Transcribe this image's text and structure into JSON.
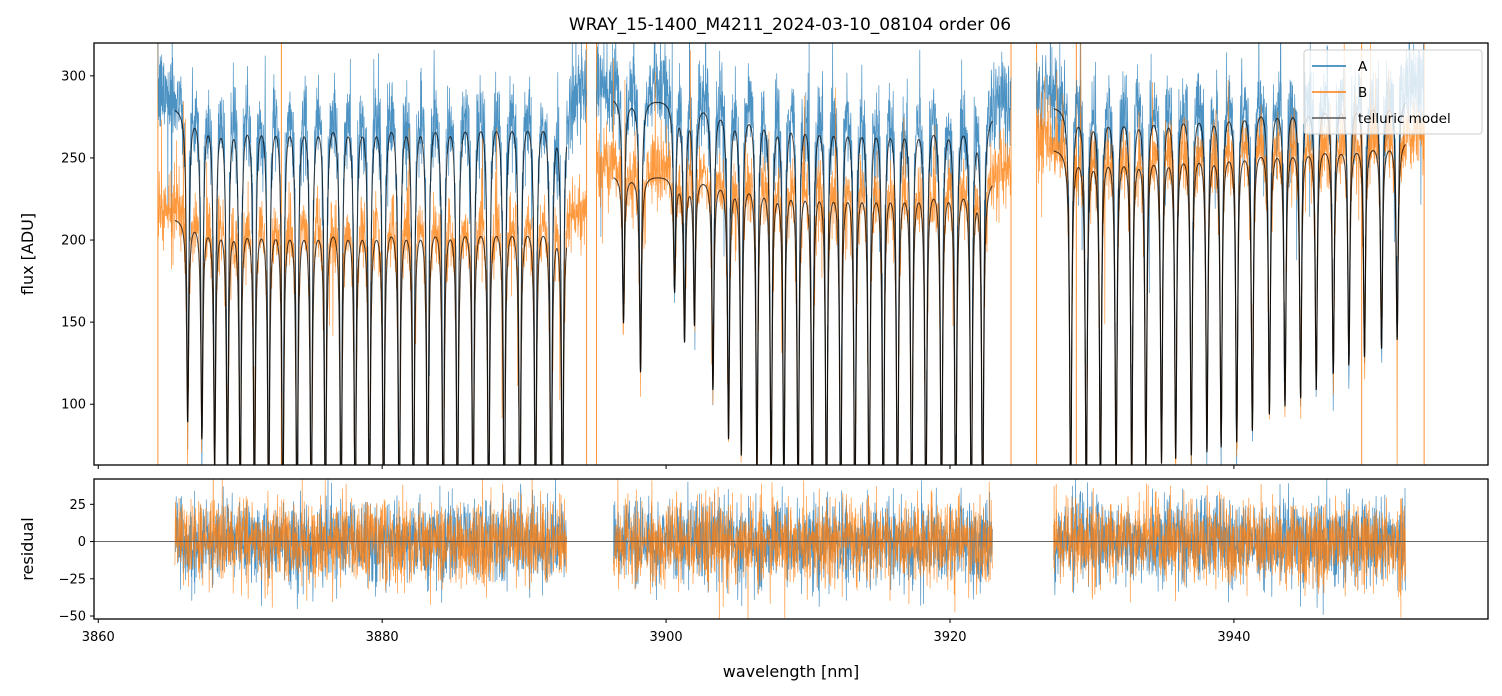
{
  "chart_data": [
    {
      "panel": "main",
      "type": "line",
      "title": "WRAY_15-1400_M4211_2024-03-10_08104  order 06",
      "xlabel": "",
      "ylabel": "flux [ADU]",
      "xlim": [
        3859.7,
        3957.9
      ],
      "ylim": [
        63,
        320
      ],
      "xticks": [
        3860,
        3880,
        3900,
        3920,
        3940
      ],
      "xtick_labels_visible": false,
      "yticks": [
        100,
        150,
        200,
        250,
        300
      ],
      "ytick_labels": [
        "100",
        "150",
        "200",
        "250",
        "300"
      ],
      "grid": false,
      "legend": {
        "location": "top-right",
        "entries": [
          {
            "label": "A",
            "color": "#1f77b4"
          },
          {
            "label": "B",
            "color": "#ff7f0e"
          },
          {
            "label": "telluric model",
            "color": "#333333"
          }
        ]
      },
      "segments": [
        {
          "x_range": [
            3864.2,
            3894.4
          ],
          "model_range": [
            3865.4,
            3893.0
          ],
          "continuum_A": 282,
          "continuum_B": 214,
          "line_centers": [
            3866.3,
            3867.3,
            3868.2,
            3869.1,
            3870.0,
            3871.0,
            3872.0,
            3873.0,
            3874.0,
            3875.0,
            3876.0,
            3877.1,
            3878.1,
            3879.1,
            3880.1,
            3881.2,
            3882.2,
            3883.2,
            3884.3,
            3885.3,
            3886.4,
            3887.5,
            3888.6,
            3889.7,
            3890.8,
            3891.9,
            3892.7
          ],
          "line_min_flux": [
            130,
            120,
            103,
            92,
            82,
            76,
            70,
            66,
            63,
            63,
            63,
            63,
            63,
            63,
            63,
            63,
            63,
            63,
            63,
            63,
            63,
            63,
            63,
            63,
            63,
            63,
            63
          ]
        },
        {
          "x_range": [
            3895.1,
            3924.3
          ],
          "model_range": [
            3896.3,
            3923.0
          ],
          "continuum_A": 288,
          "continuum_B": 240,
          "continuum_A_end": 278,
          "continuum_B_end": 238,
          "line_centers": [
            3897.0,
            3898.2,
            3900.6,
            3901.3,
            3902.0,
            3903.3,
            3904.4,
            3905.3,
            3906.4,
            3907.4,
            3908.3,
            3909.3,
            3910.3,
            3911.3,
            3912.3,
            3913.3,
            3914.3,
            3915.3,
            3916.3,
            3917.3,
            3918.3,
            3919.4,
            3920.4,
            3921.5,
            3922.3
          ],
          "line_min_flux": [
            190,
            160,
            210,
            180,
            190,
            150,
            120,
            110,
            100,
            92,
            84,
            76,
            70,
            66,
            63,
            63,
            63,
            63,
            63,
            63,
            63,
            63,
            63,
            63,
            63
          ]
        },
        {
          "x_range": [
            3926.1,
            3953.4
          ],
          "model_range": [
            3927.3,
            3952.1
          ],
          "continuum_A": 282,
          "continuum_B": 256,
          "continuum_A_end": 288,
          "continuum_B_end": 262,
          "line_centers": [
            3928.5,
            3929.6,
            3930.6,
            3931.7,
            3932.8,
            3933.8,
            3934.9,
            3935.9,
            3937.0,
            3938.1,
            3939.1,
            3940.2,
            3941.3,
            3942.5,
            3943.6,
            3944.7,
            3945.8,
            3947.0,
            3948.1,
            3949.2,
            3950.4,
            3951.5
          ],
          "line_min_flux": [
            78,
            80,
            85,
            90,
            95,
            100,
            105,
            108,
            110,
            112,
            115,
            118,
            125,
            135,
            140,
            145,
            150,
            160,
            165,
            170,
            175,
            180
          ]
        }
      ],
      "series": [
        {
          "name": "A",
          "color": "#1f77b4"
        },
        {
          "name": "B",
          "color": "#ff7f0e"
        },
        {
          "name": "telluric model",
          "color": "#000000"
        }
      ],
      "spikes": [
        3864.2,
        3872.9,
        3894.4,
        3895.1,
        3924.3,
        3926.1,
        3928.9,
        3949.0,
        3953.4
      ]
    },
    {
      "panel": "residual",
      "type": "line",
      "xlabel": "wavelength [nm]",
      "ylabel": "residual",
      "xlim": [
        3859.7,
        3957.9
      ],
      "ylim": [
        -52,
        42
      ],
      "xticks": [
        3860,
        3880,
        3900,
        3920,
        3940
      ],
      "xtick_labels": [
        "3860",
        "3880",
        "3900",
        "3920",
        "3940"
      ],
      "yticks": [
        25,
        0,
        -25,
        -50
      ],
      "ytick_labels": [
        "25",
        "0",
        "−25",
        "−50"
      ],
      "zero_line": 0,
      "noise_sigma": 14,
      "segments": [
        [
          3865.4,
          3893.0
        ],
        [
          3896.3,
          3923.0
        ],
        [
          3927.3,
          3952.1
        ]
      ],
      "series": [
        {
          "name": "A",
          "color": "#1f77b4"
        },
        {
          "name": "B",
          "color": "#ff7f0e"
        }
      ]
    }
  ]
}
